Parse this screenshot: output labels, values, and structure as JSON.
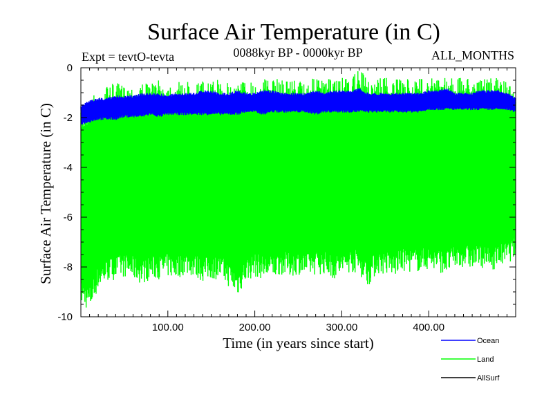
{
  "header": {
    "title": "Surface Air Temperature (in C)",
    "expt": "Expt = tevtO-tevta",
    "period": "0088kyr BP - 0000kyr BP",
    "months": "ALL_MONTHS"
  },
  "chart_data": {
    "type": "line",
    "title": "Surface Air Temperature (in C)",
    "xlabel": "Time (in years since start)",
    "ylabel": "Surface Air Temperature (in C)",
    "xlim": [
      0,
      500
    ],
    "ylim": [
      -10,
      0
    ],
    "x_ticks": [
      100,
      200,
      300,
      400
    ],
    "x_tick_labels": [
      "100.00",
      "200.00",
      "300.00",
      "400.00"
    ],
    "y_ticks": [
      0,
      -2,
      -4,
      -6,
      -8,
      -10
    ],
    "y_tick_labels": [
      "0",
      "-2",
      "-4",
      "-6",
      "-8",
      "-10"
    ],
    "grid": false,
    "legend_position": "bottom-right",
    "series": [
      {
        "name": "Ocean",
        "color": "#0000ff",
        "x": [
          0,
          10,
          20,
          30,
          40,
          50,
          60,
          70,
          80,
          90,
          100,
          110,
          120,
          130,
          140,
          150,
          160,
          170,
          180,
          190,
          200,
          210,
          220,
          230,
          240,
          250,
          260,
          270,
          280,
          290,
          300,
          310,
          320,
          330,
          340,
          350,
          360,
          370,
          380,
          390,
          400,
          410,
          420,
          430,
          440,
          450,
          460,
          470,
          480,
          490,
          500
        ],
        "upper": [
          -1.5,
          -1.3,
          -1.2,
          -1.2,
          -1.1,
          -1.1,
          -1.1,
          -1.0,
          -1.0,
          -1.0,
          -1.1,
          -1.0,
          -1.0,
          -1.0,
          -0.9,
          -0.9,
          -1.0,
          -1.0,
          -0.9,
          -1.0,
          -1.0,
          -0.9,
          -0.9,
          -1.0,
          -1.0,
          -1.0,
          -1.0,
          -0.9,
          -1.0,
          -0.9,
          -0.9,
          -0.9,
          -0.8,
          -1.0,
          -1.0,
          -1.0,
          -1.0,
          -1.0,
          -1.0,
          -1.0,
          -0.9,
          -0.9,
          -0.8,
          -1.0,
          -1.0,
          -1.0,
          -0.9,
          -0.9,
          -0.9,
          -1.0,
          -1.2
        ],
        "lower": [
          -2.3,
          -2.2,
          -2.1,
          -2.1,
          -2.1,
          -2.0,
          -2.0,
          -2.0,
          -1.9,
          -2.0,
          -1.9,
          -1.9,
          -1.9,
          -1.9,
          -1.9,
          -1.9,
          -1.9,
          -1.9,
          -1.9,
          -1.8,
          -1.8,
          -1.9,
          -1.8,
          -1.8,
          -1.8,
          -1.8,
          -1.8,
          -1.9,
          -1.8,
          -1.8,
          -1.8,
          -1.8,
          -1.8,
          -1.8,
          -1.8,
          -1.8,
          -1.8,
          -1.8,
          -1.8,
          -1.8,
          -1.7,
          -1.7,
          -1.7,
          -1.7,
          -1.7,
          -1.7,
          -1.7,
          -1.7,
          -1.7,
          -1.7,
          -1.8
        ]
      },
      {
        "name": "Land",
        "color": "#00ff00",
        "x": [
          0,
          10,
          20,
          30,
          40,
          50,
          60,
          70,
          80,
          90,
          100,
          110,
          120,
          130,
          140,
          150,
          160,
          170,
          180,
          190,
          200,
          210,
          220,
          230,
          240,
          250,
          260,
          270,
          280,
          290,
          300,
          310,
          320,
          330,
          340,
          350,
          360,
          370,
          380,
          390,
          400,
          410,
          420,
          430,
          440,
          450,
          460,
          470,
          480,
          490,
          500
        ],
        "upper": [
          -1.8,
          -1.2,
          -0.9,
          -0.7,
          -0.6,
          -0.7,
          -0.7,
          -0.6,
          -0.6,
          -0.5,
          -0.6,
          -0.6,
          -0.5,
          -0.6,
          -0.5,
          -0.6,
          -0.4,
          -0.6,
          -0.5,
          -0.5,
          -0.5,
          -0.4,
          -0.5,
          -0.4,
          -0.4,
          -0.5,
          -0.5,
          -0.4,
          -0.5,
          -0.4,
          -0.4,
          -0.5,
          0.0,
          -0.5,
          -0.4,
          -0.3,
          -0.5,
          -0.4,
          -0.5,
          -0.4,
          -0.4,
          -0.4,
          -0.3,
          -0.4,
          -0.4,
          -0.3,
          -0.5,
          -0.4,
          -0.4,
          -0.5,
          -1.0
        ],
        "lower": [
          -9.5,
          -9.8,
          -8.9,
          -8.6,
          -8.5,
          -8.4,
          -8.5,
          -8.7,
          -8.5,
          -8.5,
          -8.4,
          -8.5,
          -8.3,
          -8.4,
          -8.6,
          -8.5,
          -8.5,
          -8.8,
          -9.2,
          -8.6,
          -8.4,
          -8.5,
          -8.5,
          -8.3,
          -8.4,
          -8.3,
          -8.4,
          -8.3,
          -8.3,
          -8.5,
          -8.4,
          -8.2,
          -8.3,
          -8.8,
          -8.3,
          -8.3,
          -8.4,
          -8.2,
          -8.2,
          -8.2,
          -8.1,
          -8.2,
          -8.3,
          -8.1,
          -8.0,
          -8.1,
          -8.0,
          -8.2,
          -8.0,
          -7.9,
          -7.6
        ]
      },
      {
        "name": "AllSurf",
        "color": "#000000",
        "x": [
          0,
          500
        ],
        "upper": [],
        "lower": []
      }
    ]
  }
}
